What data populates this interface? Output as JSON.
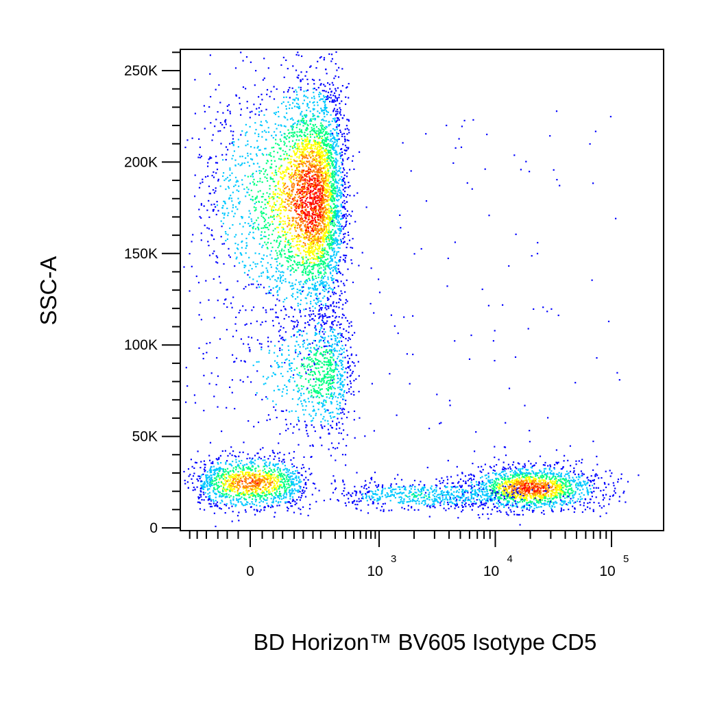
{
  "chart_data": {
    "type": "scatter",
    "subtype": "flow-cytometry-density-dot-plot",
    "xlabel": "BD Horizon™ BV605 Isotype CD5",
    "ylabel": "SSC-A",
    "x_scale": "biexponential",
    "y_scale": "linear",
    "ylim": [
      0,
      262144
    ],
    "y_ticks": [
      {
        "value": 0,
        "label": "0"
      },
      {
        "value": 50000,
        "label": "50K"
      },
      {
        "value": 100000,
        "label": "100K"
      },
      {
        "value": 150000,
        "label": "150K"
      },
      {
        "value": 200000,
        "label": "200K"
      },
      {
        "value": 250000,
        "label": "250K"
      }
    ],
    "x_ticks": [
      {
        "value": 0,
        "label": "0",
        "exp": ""
      },
      {
        "value": 1000,
        "label": "10",
        "exp": "3"
      },
      {
        "value": 10000,
        "label": "10",
        "exp": "4"
      },
      {
        "value": 100000,
        "label": "10",
        "exp": "5"
      }
    ],
    "colormap": [
      "#0000ff",
      "#00c8ff",
      "#00ff80",
      "#ffff00",
      "#ff8000",
      "#ff0000"
    ],
    "populations": [
      {
        "name": "",
        "x_center": 150,
        "y_center": 180000,
        "x_spread": 110,
        "y_spread": 32000,
        "count": 4200,
        "density_peak": 1.0
      },
      {
        "name": "",
        "x_center": 200,
        "y_center": 85000,
        "x_spread": 130,
        "y_spread": 18000,
        "count": 900,
        "density_peak": 0.45
      },
      {
        "name": "",
        "x_center": 0,
        "y_center": 25000,
        "x_spread": 60,
        "y_spread": 7000,
        "count": 1300,
        "density_peak": 0.85
      },
      {
        "name": "",
        "x_center": 20000,
        "y_center": 22000,
        "x_spread_log": 0.28,
        "y_spread": 6000,
        "count": 1600,
        "density_peak": 0.95
      },
      {
        "name": "",
        "x_center": 2500,
        "y_center": 18000,
        "x_spread_log": 0.45,
        "y_spread": 4000,
        "count": 600,
        "density_peak": 0.3
      }
    ],
    "grid": false,
    "legend": "none"
  }
}
